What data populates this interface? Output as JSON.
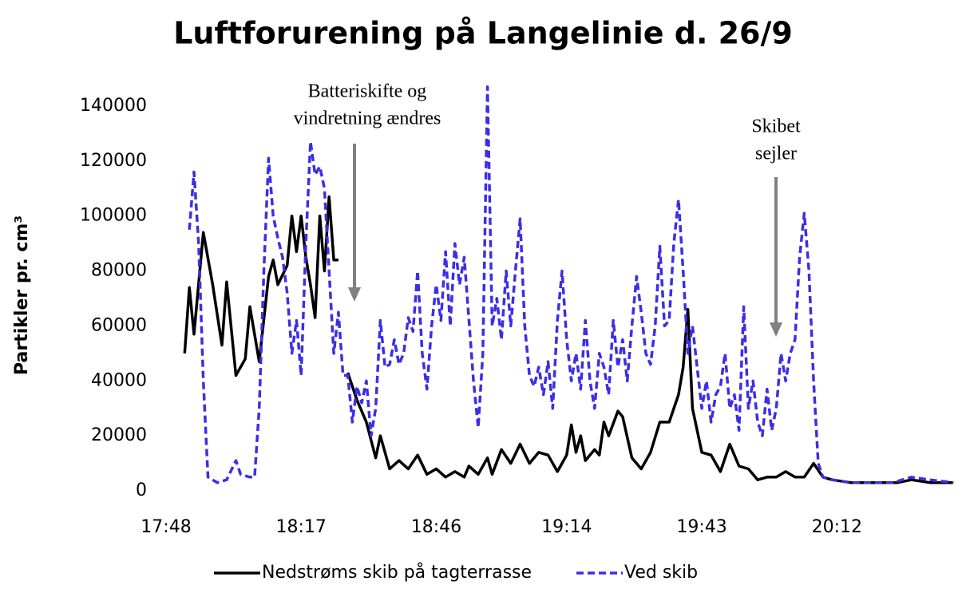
{
  "chart_data": {
    "type": "line",
    "title": "Luftforurening på Langelinie d. 26/9",
    "y_label": "Partikler pr. cm³",
    "annotations": [
      {
        "text": [
          "Batteriskifte og",
          "vindretning ændres"
        ]
      },
      {
        "text": [
          "Skibet",
          "sejler"
        ]
      }
    ],
    "xlim": [
      "17:48",
      "20:38"
    ],
    "xticks": [
      "17:48",
      "18:17",
      "18:46",
      "19:14",
      "19:43",
      "20:12"
    ],
    "ylim": [
      0,
      160000
    ],
    "yticks": [
      0,
      20000,
      40000,
      60000,
      80000,
      100000,
      120000,
      140000
    ],
    "grid": false,
    "legend": "bottom",
    "series": [
      {
        "name": "Nedstrøms skib på tagterrasse",
        "color": "#000000",
        "dash": false,
        "x": [
          "17:52",
          "17:53",
          "17:54",
          "17:56",
          "17:58",
          "18:00",
          "18:01",
          "18:03",
          "18:05",
          "18:06",
          "18:08",
          "18:10",
          "18:11",
          "18:12",
          "18:14",
          "18:15",
          "18:16",
          "18:17",
          "18:18",
          "18:19",
          "18:20",
          "18:21",
          "18:22",
          "18:23",
          "18:24",
          "18:25",
          "18:26",
          "18:27",
          "18:29",
          "18:31",
          "18:33",
          "18:34",
          "18:36",
          "18:38",
          "18:40",
          "18:42",
          "18:44",
          "18:46",
          "18:48",
          "18:50",
          "18:52",
          "18:53",
          "18:55",
          "18:57",
          "18:58",
          "19:00",
          "19:02",
          "19:04",
          "19:06",
          "19:08",
          "19:10",
          "19:12",
          "19:14",
          "19:15",
          "19:16",
          "19:17",
          "19:18",
          "19:20",
          "19:21",
          "19:22",
          "19:23",
          "19:25",
          "19:26",
          "19:28",
          "19:30",
          "19:32",
          "19:34",
          "19:36",
          "19:38",
          "19:39",
          "19:40",
          "19:41",
          "19:43",
          "19:45",
          "19:47",
          "19:49",
          "19:51",
          "19:53",
          "19:55",
          "19:57",
          "19:59",
          "20:01",
          "20:03",
          "20:05",
          "20:07",
          "20:09",
          "20:11",
          "20:15",
          "20:20",
          "20:25",
          "20:28",
          "20:32",
          "20:37"
        ],
        "values": [
          50000,
          74000,
          57000,
          94000,
          75000,
          53000,
          76000,
          42000,
          48000,
          67000,
          47000,
          78000,
          84000,
          75000,
          82000,
          100000,
          87000,
          100000,
          85000,
          75000,
          63000,
          100000,
          80000,
          107000,
          84000,
          84000,
          null,
          43000,
          33000,
          25000,
          12000,
          20000,
          8000,
          11000,
          8000,
          13000,
          6000,
          8000,
          5000,
          7000,
          5000,
          9000,
          6000,
          12000,
          6000,
          15000,
          10000,
          17000,
          10000,
          14000,
          13000,
          7000,
          13000,
          24000,
          14000,
          20000,
          11000,
          15000,
          13000,
          25000,
          20000,
          29000,
          27000,
          12000,
          8000,
          14000,
          25000,
          25000,
          35000,
          45000,
          66000,
          30000,
          14000,
          13000,
          7000,
          17000,
          9000,
          8000,
          4000,
          5000,
          5000,
          7000,
          5000,
          5000,
          10000,
          5000,
          4000,
          3000,
          3000,
          3000,
          4000,
          3000,
          3000
        ]
      },
      {
        "name": "Ved skib",
        "color": "#3c2ee6",
        "dash": true,
        "x": [
          "17:53",
          "17:54",
          "17:55",
          "17:56",
          "17:57",
          "17:59",
          "18:01",
          "18:03",
          "18:04",
          "18:06",
          "18:07",
          "18:08",
          "18:09",
          "18:10",
          "18:11",
          "18:12",
          "18:13",
          "18:14",
          "18:15",
          "18:16",
          "18:17",
          "18:18",
          "18:19",
          "18:20",
          "18:21",
          "18:22",
          "18:23",
          "18:24",
          "18:25",
          "18:26",
          "18:27",
          "18:28",
          "18:29",
          "18:30",
          "18:31",
          "18:32",
          "18:33",
          "18:34",
          "18:35",
          "18:36",
          "18:37",
          "18:38",
          "18:39",
          "18:40",
          "18:41",
          "18:42",
          "18:43",
          "18:44",
          "18:45",
          "18:46",
          "18:47",
          "18:48",
          "18:49",
          "18:50",
          "18:51",
          "18:52",
          "18:54",
          "18:55",
          "18:56",
          "18:57",
          "18:58",
          "18:59",
          "19:00",
          "19:01",
          "19:02",
          "19:03",
          "19:04",
          "19:05",
          "19:06",
          "19:07",
          "19:08",
          "19:09",
          "19:10",
          "19:11",
          "19:12",
          "19:13",
          "19:14",
          "19:15",
          "19:16",
          "19:17",
          "19:18",
          "19:19",
          "19:20",
          "19:21",
          "19:22",
          "19:23",
          "19:24",
          "19:25",
          "19:26",
          "19:27",
          "19:28",
          "19:29",
          "19:30",
          "19:31",
          "19:32",
          "19:33",
          "19:34",
          "19:35",
          "19:36",
          "19:37",
          "19:38",
          "19:39",
          "19:40",
          "19:41",
          "19:42",
          "19:43",
          "19:44",
          "19:45",
          "19:46",
          "19:47",
          "19:48",
          "19:49",
          "19:50",
          "19:51",
          "19:52",
          "19:53",
          "19:54",
          "19:55",
          "19:56",
          "19:57",
          "19:58",
          "19:59",
          "20:00",
          "20:01",
          "20:02",
          "20:03",
          "20:04",
          "20:05",
          "20:06",
          "20:07",
          "20:08",
          "20:09",
          "20:11",
          "20:15",
          "20:20",
          "20:24",
          "20:28",
          "20:32",
          "20:37"
        ],
        "values": [
          95000,
          116000,
          90000,
          40000,
          5000,
          3000,
          4000,
          11000,
          6000,
          5000,
          5000,
          30000,
          80000,
          121000,
          100000,
          92000,
          85000,
          72000,
          50000,
          62000,
          42000,
          90000,
          127000,
          115000,
          118000,
          110000,
          80000,
          50000,
          65000,
          42000,
          42000,
          25000,
          38000,
          32000,
          40000,
          20000,
          30000,
          62000,
          45000,
          46000,
          55000,
          46000,
          50000,
          63000,
          58000,
          80000,
          50000,
          37000,
          60000,
          75000,
          62000,
          87000,
          60000,
          90000,
          75000,
          85000,
          40000,
          23000,
          50000,
          147000,
          60000,
          70000,
          55000,
          80000,
          60000,
          80000,
          99000,
          60000,
          42000,
          38000,
          45000,
          35000,
          47000,
          30000,
          62000,
          80000,
          55000,
          40000,
          50000,
          37000,
          62000,
          40000,
          30000,
          50000,
          45000,
          35000,
          62000,
          45000,
          55000,
          40000,
          60000,
          78000,
          65000,
          50000,
          46000,
          60000,
          89000,
          60000,
          62000,
          90000,
          106000,
          80000,
          50000,
          60000,
          45000,
          30000,
          40000,
          25000,
          35000,
          38000,
          50000,
          30000,
          35000,
          22000,
          67000,
          30000,
          40000,
          25000,
          20000,
          37000,
          22000,
          30000,
          50000,
          40000,
          50000,
          55000,
          85000,
          101000,
          80000,
          40000,
          10000,
          5000,
          4000,
          3000,
          3000,
          3000,
          5000,
          4000,
          3000
        ]
      }
    ]
  }
}
